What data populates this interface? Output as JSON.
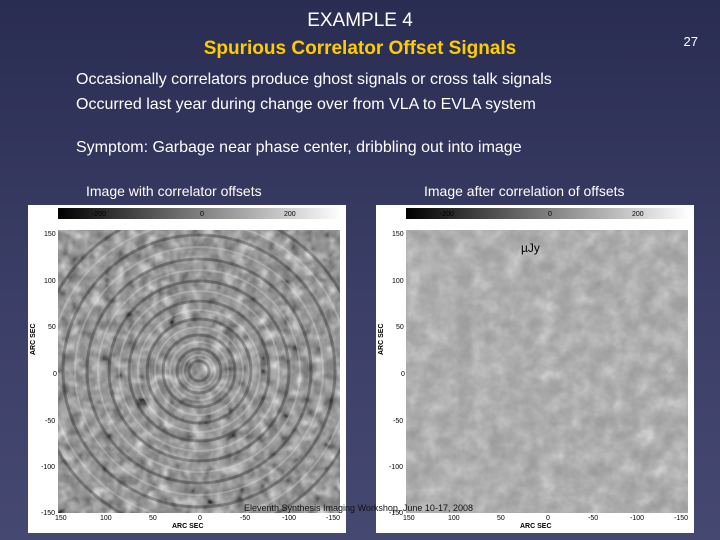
{
  "header": {
    "example": "EXAMPLE 4",
    "subtitle": "Spurious Correlator Offset Signals",
    "page_number": "27"
  },
  "body": {
    "line1": "Occasionally correlators produce ghost signals or cross talk signals",
    "line2": "Occurred last year during change over from VLA to EVLA system",
    "line3": "Symptom:  Garbage near phase center, dribbling out into image"
  },
  "captions": {
    "left": "Image with correlator offsets",
    "right": "Image after correlation of offsets"
  },
  "panels": {
    "axis_label": "ARC SEC",
    "top_ticks": [
      "-200",
      "0",
      "200"
    ],
    "y_ticks": [
      "150",
      "100",
      "50",
      "0",
      "-50",
      "-100",
      "-150"
    ],
    "x_ticks": [
      "150",
      "100",
      "50",
      "0",
      "-50",
      "-100",
      "-150"
    ]
  },
  "unit_label": "µJy",
  "footer": "Eleventh Synthesis Imaging Workshop, June 10-17, 2008",
  "colors": {
    "background": "#2a2d52",
    "subtitle": "#ffcc00"
  }
}
